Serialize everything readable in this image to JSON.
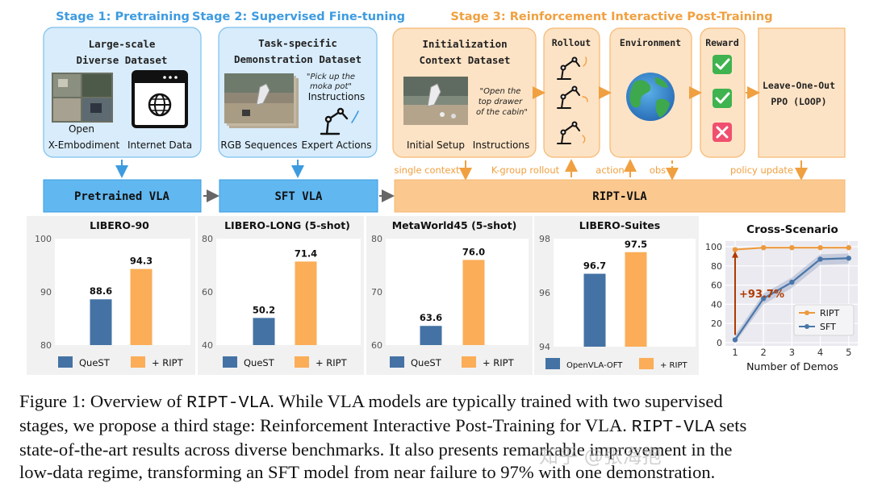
{
  "stages": {
    "stage1": "Stage 1: Pretraining",
    "stage2": "Stage 2: Supervised Fine-tuning",
    "stage3": "Stage 3: Reinforcement Interactive Post-Training"
  },
  "panel1": {
    "title_line1": "Large-scale",
    "title_line2": "Diverse Dataset",
    "label_a_line1": "Open",
    "label_a_line2": "X-Embodiment",
    "label_b": "Internet Data"
  },
  "panel2": {
    "title_line1": "Task-specific",
    "title_line2": "Demonstration Dataset",
    "quote_line1": "\"Pick up the",
    "quote_line2": "moka pot\"",
    "instructions": "Instructions",
    "label_a": "RGB Sequences",
    "label_b": "Expert Actions"
  },
  "panel3": {
    "title_line1": "Initialization",
    "title_line2": "Context Dataset",
    "quote_line1": "\"Open the",
    "quote_line2": "top drawer",
    "quote_line3": "of the cabin\"",
    "label_a": "Initial Setup",
    "label_b": "Instructions",
    "rollout": "Rollout",
    "environment": "Environment",
    "reward": "Reward",
    "loop_line1": "Leave-One-Out",
    "loop_line2": "PPO (LOOP)",
    "single_context": "single context",
    "k_group": "K-group rollout",
    "action": "action",
    "obs": "obs",
    "policy_update": "policy update"
  },
  "bars": {
    "pretrained": "Pretrained VLA",
    "sft": "SFT VLA",
    "ript": "RIPT-VLA"
  },
  "colors": {
    "stage1": "#3d9be0",
    "stage3": "#f0a040",
    "quest": "#4472a4",
    "ript": "#fbad58",
    "bar_blue": "#61b8f1",
    "bar_orange": "#fbc990",
    "line_orange": "#ec9a3e",
    "line_blue": "#4a77aa",
    "gain": "#b03a00"
  },
  "chart_data": [
    {
      "type": "bar",
      "title": "LIBERO-90",
      "categories": [
        "QueST",
        "+ RIPT"
      ],
      "values": [
        88.6,
        94.3
      ],
      "value_labels": [
        "88.6",
        "94.3"
      ],
      "ylim": [
        80,
        100
      ],
      "yticks": [
        80,
        90,
        100
      ],
      "legend": [
        "QueST",
        "+ RIPT"
      ],
      "legend_placement": "bottom"
    },
    {
      "type": "bar",
      "title": "LIBERO-LONG (5-shot)",
      "categories": [
        "QueST",
        "+ RIPT"
      ],
      "values": [
        50.2,
        71.4
      ],
      "value_labels": [
        "50.2",
        "71.4"
      ],
      "ylim": [
        40,
        80
      ],
      "yticks": [
        40,
        60,
        80
      ],
      "legend": [
        "QueST",
        "+ RIPT"
      ],
      "legend_placement": "bottom"
    },
    {
      "type": "bar",
      "title": "MetaWorld45 (5-shot)",
      "categories": [
        "QueST",
        "+ RIPT"
      ],
      "values": [
        63.6,
        76.0
      ],
      "value_labels": [
        "63.6",
        "76.0"
      ],
      "ylim": [
        60,
        80
      ],
      "yticks": [
        60,
        70,
        80
      ],
      "legend": [
        "QueST",
        "+ RIPT"
      ],
      "legend_placement": "bottom"
    },
    {
      "type": "bar",
      "title": "LIBERO-Suites",
      "categories": [
        "OpenVLA-OFT",
        "+ RIPT"
      ],
      "values": [
        96.7,
        97.5
      ],
      "value_labels": [
        "96.7",
        "97.5"
      ],
      "ylim": [
        94,
        98
      ],
      "yticks": [
        94,
        96,
        98
      ],
      "legend": [
        "OpenVLA-OFT",
        "+ RIPT"
      ],
      "legend_placement": "bottom"
    },
    {
      "type": "line",
      "title": "Cross-Scenario",
      "xlabel": "Number of Demos",
      "x": [
        1,
        2,
        3,
        4,
        5
      ],
      "xticks": [
        1,
        2,
        3,
        4,
        5
      ],
      "ylim": [
        0,
        100
      ],
      "yticks": [
        0,
        20,
        40,
        60,
        80,
        100
      ],
      "grid": true,
      "legend_placement": "bottom-right",
      "series": [
        {
          "name": "RIPT",
          "values": [
            97,
            99,
            99,
            99,
            99
          ]
        },
        {
          "name": "SFT",
          "values": [
            3,
            46,
            63,
            87,
            88
          ]
        }
      ],
      "annotation": "+93.7%"
    }
  ],
  "caption": {
    "l1a": "Figure 1: Overview of ",
    "l1b": "RIPT-VLA",
    "l1c": ". While VLA models are typically trained with two supervised",
    "l2a": "stages, we propose a third stage: Reinforcement Interactive Post-Training for VLA. ",
    "l2b": "RIPT-VLA",
    "l2c": " sets",
    "l3": "state-of-the-art results across diverse benchmarks. It also presents remarkable improvement in the",
    "l4": "low-data regime, transforming an SFT model from near failure to 97% with one demonstration."
  },
  "watermark": "知乎 @张海抱"
}
